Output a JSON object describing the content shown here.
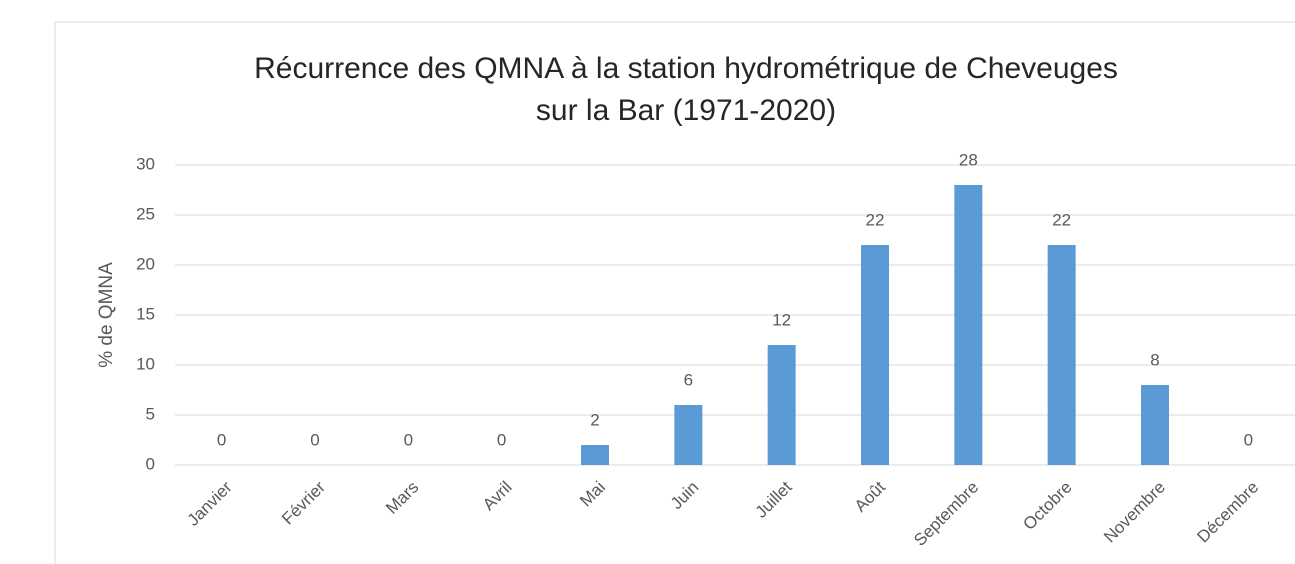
{
  "chart_data": {
    "type": "bar",
    "title": [
      "Récurrence des QMNA à la station hydrométrique de Cheveuges",
      "sur la Bar (1971-2020)"
    ],
    "y_label": "% de QMNA",
    "categories": [
      "Janvier",
      "Février",
      "Mars",
      "Avril",
      "Mai",
      "Juin",
      "Juillet",
      "Août",
      "Septembre",
      "Octobre",
      "Novembre",
      "Décembre"
    ],
    "values": [
      0,
      0,
      0,
      0,
      2,
      6,
      12,
      22,
      28,
      22,
      8,
      0
    ],
    "color": "#5b9bd5",
    "ylim": [
      0,
      30
    ],
    "yticks": [
      0,
      5,
      10,
      15,
      20,
      25,
      30
    ],
    "grid": true
  }
}
